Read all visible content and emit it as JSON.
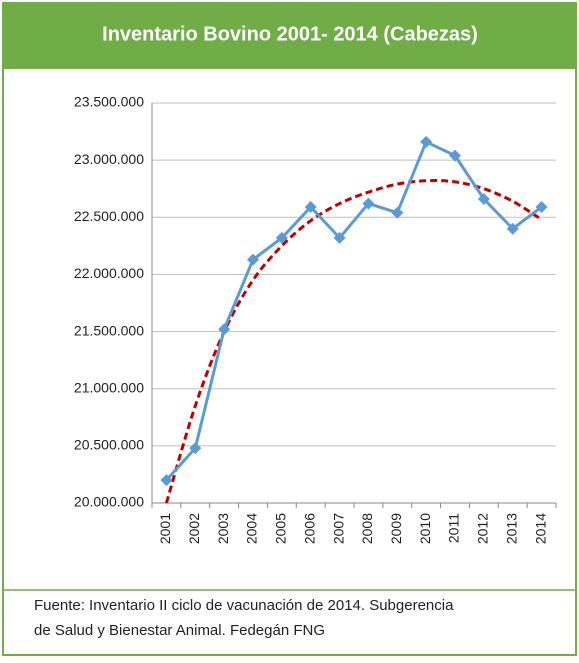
{
  "chart_data": {
    "type": "line",
    "title": "Inventario Bovino 2001- 2014 (Cabezas)",
    "categories": [
      "2001",
      "2002",
      "2003",
      "2004",
      "2005",
      "2006",
      "2007",
      "2008",
      "2009",
      "2010",
      "2011",
      "2012",
      "2013",
      "2014"
    ],
    "series": [
      {
        "color": "#5b9bd5",
        "values": [
          20200000,
          20480000,
          21520000,
          22130000,
          22320000,
          22590000,
          22320000,
          22620000,
          22540000,
          23160000,
          23040000,
          22660000,
          22400000,
          22590000
        ]
      }
    ],
    "trendline": {
      "color": "#c00000",
      "values": [
        20000000,
        20850000,
        21500000,
        21950000,
        22250000,
        22470000,
        22620000,
        22720000,
        22790000,
        22820000,
        22810000,
        22750000,
        22640000,
        22480000
      ]
    },
    "ylim": [
      20000000,
      23500000
    ],
    "yticks": [
      {
        "value": 20000000,
        "label": "20.000.000"
      },
      {
        "value": 20500000,
        "label": "20.500.000"
      },
      {
        "value": 21000000,
        "label": "21.000.000"
      },
      {
        "value": 21500000,
        "label": "21.500.000"
      },
      {
        "value": 22000000,
        "label": "22.000.000"
      },
      {
        "value": 22500000,
        "label": "22.500.000"
      },
      {
        "value": 23000000,
        "label": "23.000.000"
      },
      {
        "value": 23500000,
        "label": "23.500.000"
      }
    ],
    "grid": true,
    "source": [
      "Fuente: Inventario II ciclo de vacunación de 2014. Subgerencia",
      "de Salud y Bienestar Animal. Fedegán FNG"
    ]
  }
}
